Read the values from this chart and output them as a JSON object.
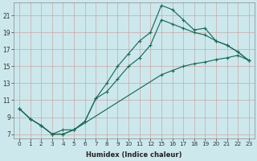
{
  "xlabel": "Humidex (Indice chaleur)",
  "bg_color": "#cce8ec",
  "grid_color": "#c8a8a8",
  "line_color": "#1a6b5a",
  "xlim": [
    -0.5,
    23.5
  ],
  "ylim": [
    6.5,
    22.5
  ],
  "yticks": [
    7,
    9,
    11,
    13,
    15,
    17,
    19,
    21
  ],
  "xtick_positions": [
    0,
    1,
    2,
    3,
    4,
    5,
    6,
    7,
    8,
    9,
    10,
    11,
    12,
    15,
    16,
    17,
    18,
    19,
    20,
    21,
    22,
    23
  ],
  "xtick_labels": [
    "0",
    "1",
    "2",
    "3",
    "4",
    "5",
    "6",
    "7",
    "8",
    "9",
    "10",
    "11",
    "12",
    "15",
    "16",
    "17",
    "18",
    "19",
    "20",
    "21",
    "22",
    "23"
  ],
  "line1_x": [
    0,
    1,
    2,
    3,
    4,
    5,
    6,
    7,
    8,
    9,
    10,
    11,
    12,
    15,
    16,
    17,
    18,
    19,
    20,
    21,
    22,
    23
  ],
  "line1_y": [
    10,
    8.8,
    8.0,
    7.0,
    7.0,
    7.5,
    8.5,
    11.2,
    13.0,
    15.0,
    16.5,
    18.0,
    19.0,
    22.2,
    21.7,
    20.5,
    19.3,
    19.5,
    18.0,
    17.5,
    16.7,
    15.7
  ],
  "line2_x": [
    0,
    1,
    2,
    3,
    4,
    5,
    6,
    7,
    8,
    9,
    10,
    11,
    12,
    15,
    16,
    17,
    18,
    19,
    20,
    21,
    22,
    23
  ],
  "line2_y": [
    10,
    8.8,
    8.0,
    7.0,
    7.0,
    7.5,
    8.5,
    11.2,
    12.0,
    13.5,
    15.0,
    16.0,
    17.5,
    20.5,
    20.0,
    19.5,
    19.0,
    18.7,
    18.0,
    17.5,
    16.7,
    15.7
  ],
  "line3_x": [
    0,
    1,
    2,
    3,
    4,
    5,
    15,
    16,
    17,
    18,
    19,
    20,
    21,
    22,
    23
  ],
  "line3_y": [
    10,
    8.8,
    8.0,
    7.0,
    7.5,
    7.5,
    14.0,
    14.5,
    15.0,
    15.3,
    15.5,
    15.8,
    16.0,
    16.3,
    15.7
  ]
}
